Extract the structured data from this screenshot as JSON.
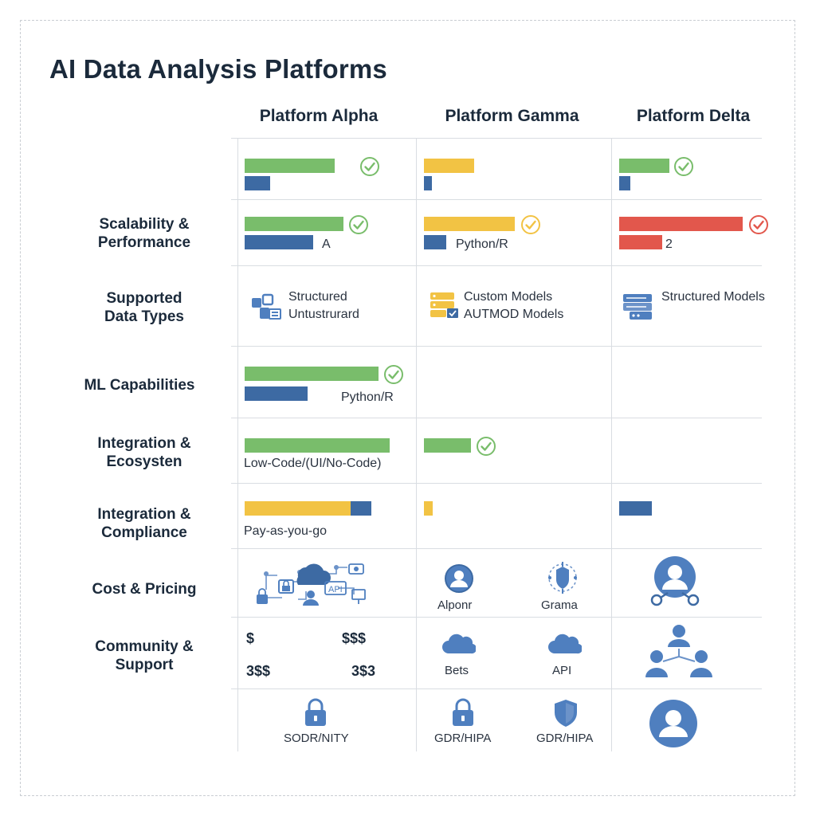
{
  "title": "AI Data Analysis Platforms",
  "columns": [
    "Platform Alpha",
    "Platform Gamma",
    "Platform Delta"
  ],
  "row_labels": {
    "scalability": [
      "Scalability &",
      "Performance"
    ],
    "data_types": [
      "Supported",
      "Data Types"
    ],
    "ml": [
      "ML Capabilities"
    ],
    "integration_ecosystem": [
      "Integration &",
      "Ecosysten"
    ],
    "integration_compliance": [
      "Integration &",
      "Compliance"
    ],
    "cost": [
      "Cost & Pricing"
    ],
    "community": [
      "Community &",
      "Support"
    ]
  },
  "cells": {
    "row2": {
      "alpha_text": "A",
      "gamma_text": "Python/R",
      "delta_text": "2"
    },
    "row3": {
      "alpha_lines": [
        "Structured",
        "Untustrurard"
      ],
      "gamma_lines": [
        "Custom Models",
        "AUTMOD Models"
      ],
      "delta_lines": [
        "Structured Models"
      ]
    },
    "row4": {
      "alpha_text": "Python/R"
    },
    "row5": {
      "alpha_text": "Low-Code/(UI/No-Code)"
    },
    "row6": {
      "alpha_text": "Pay-as-you-go"
    },
    "row7": {
      "alpha_api_text": "API",
      "gamma_left_text": "Alponr",
      "gamma_right_text": "Grama"
    },
    "row8": {
      "alpha_costs": [
        "$",
        "$$$",
        "3$$",
        "3$3"
      ],
      "gamma_left_text": "Bets",
      "gamma_right_text": "API"
    },
    "row9": {
      "alpha_text": "SODR/NITY",
      "gamma_left_text": "GDR/HIPA",
      "gamma_right_text": "GDR/HIPA"
    }
  },
  "bar_levels": {
    "row1": {
      "alpha": {
        "green": 0.75,
        "blue": 0.18,
        "check": true
      },
      "gamma": {
        "yellow": 0.37,
        "blue": 0.06,
        "check": false
      },
      "delta": {
        "green": 0.37,
        "blue": 0.09,
        "check": true
      }
    },
    "row2": {
      "alpha": {
        "green": 0.67,
        "blue": 0.48,
        "check": true
      },
      "gamma": {
        "yellow": 0.65,
        "blue": 0.16,
        "check": true
      },
      "delta": {
        "red": 0.91,
        "blue": 0.32,
        "check": true
      }
    },
    "row4": {
      "alpha": {
        "green": 0.91,
        "blue": 0.44,
        "check": true
      }
    },
    "row5": {
      "alpha": {
        "green": 1.0,
        "check": false
      },
      "gamma": {
        "green": 0.32,
        "check": true
      }
    },
    "row6": {
      "alpha": {
        "yellow": 0.72,
        "blue": 0.14
      },
      "gamma": {
        "yellow": 0.06
      },
      "delta": {
        "blue": 0.23
      }
    }
  },
  "colors": {
    "green": "#79bd6b",
    "blue": "#3d6aa3",
    "yellow": "#f2c344",
    "red": "#e2574c",
    "icon_blue": "#4f7fbf",
    "text_dark": "#1b2a3b"
  },
  "icons": [
    "data-structure-icon",
    "database-grid-icon",
    "server-rack-icon",
    "network-cloud-icon",
    "user-circle-icon",
    "processor-shield-icon",
    "user-network-icon",
    "cloud-icon",
    "team-hierarchy-icon",
    "lock-icon",
    "shield-icon",
    "user-avatar-icon"
  ]
}
